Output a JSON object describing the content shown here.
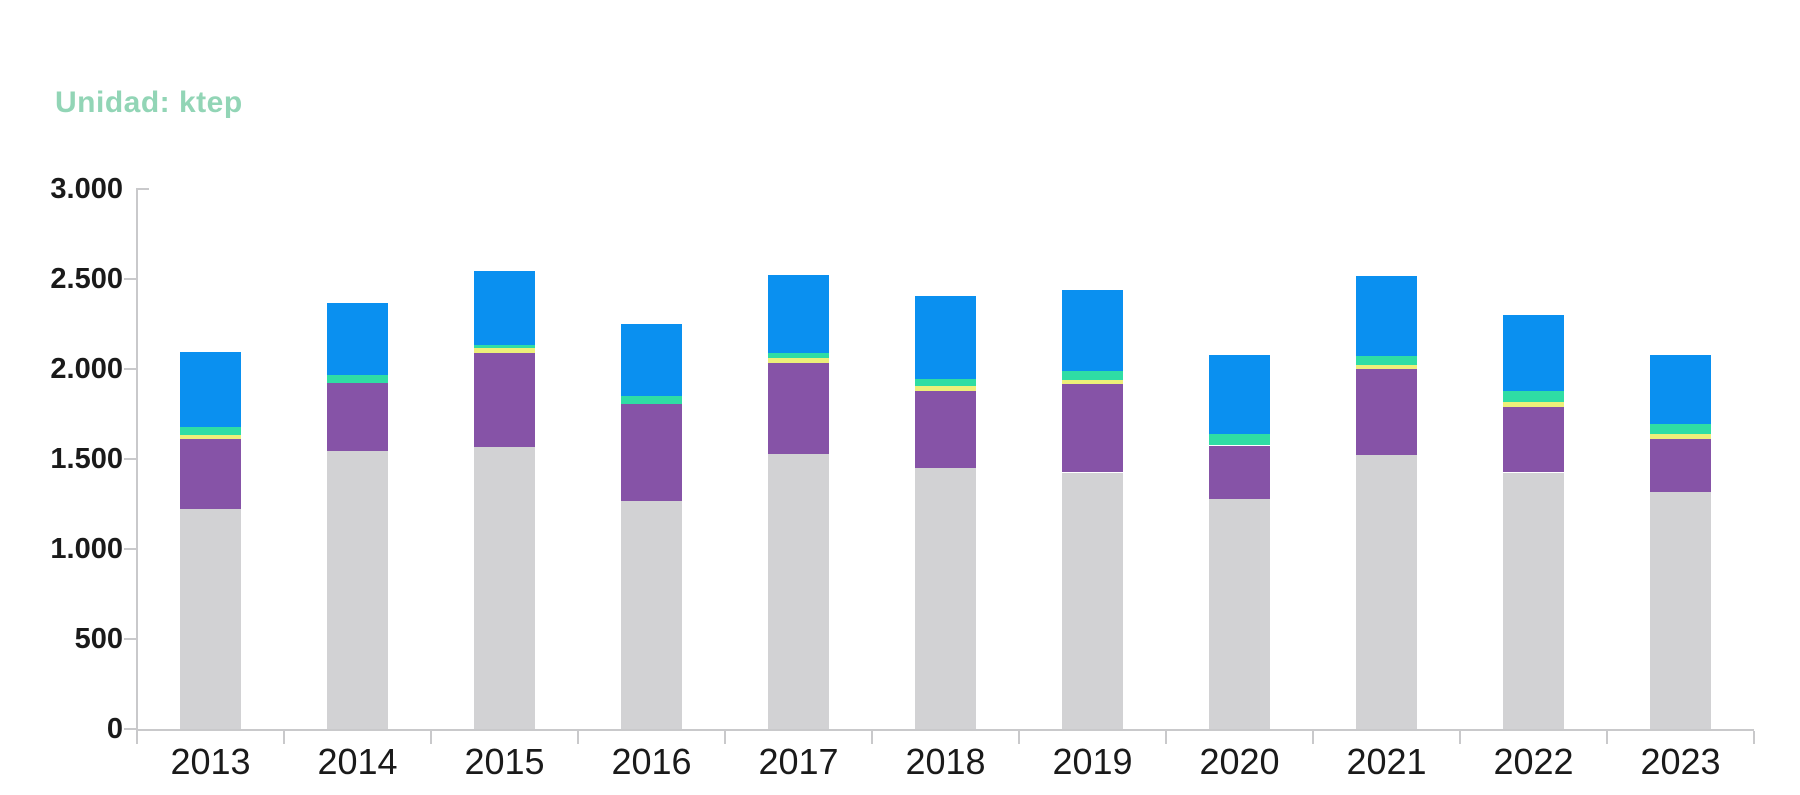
{
  "title": "Unidad: ktep",
  "colors": {
    "title": "#92d5b6",
    "axis": "#c9c9cb",
    "tick_label": "#1a1a1a"
  },
  "chart_data": {
    "type": "bar",
    "stacked": true,
    "title": "Unidad: ktep",
    "unit": "ktep",
    "xlabel": "",
    "ylabel": "",
    "ylim": [
      0,
      3000
    ],
    "grid": false,
    "legend": "none",
    "categories": [
      "2013",
      "2014",
      "2015",
      "2016",
      "2017",
      "2018",
      "2019",
      "2020",
      "2021",
      "2022",
      "2023"
    ],
    "series": [
      {
        "name": "gray",
        "color": "#d2d2d4",
        "values": [
          1220,
          1545,
          1565,
          1265,
          1530,
          1450,
          1425,
          1280,
          1520,
          1425,
          1315
        ]
      },
      {
        "name": "purple",
        "color": "#8653a7",
        "values": [
          390,
          375,
          525,
          540,
          505,
          430,
          490,
          295,
          480,
          365,
          295
        ]
      },
      {
        "name": "yellow",
        "color": "#edef79",
        "values": [
          25,
          0,
          25,
          0,
          25,
          25,
          25,
          0,
          20,
          25,
          30
        ]
      },
      {
        "name": "green",
        "color": "#2fdda4",
        "values": [
          45,
          45,
          20,
          45,
          30,
          40,
          50,
          65,
          50,
          65,
          55
        ]
      },
      {
        "name": "blue",
        "color": "#0a90f0",
        "values": [
          415,
          400,
          410,
          400,
          430,
          460,
          450,
          440,
          445,
          420,
          385
        ]
      }
    ],
    "totals": [
      2095,
      2365,
      2545,
      2250,
      2520,
      2405,
      2440,
      2080,
      2515,
      2300,
      2080
    ],
    "yticks": [
      {
        "value": 0,
        "label": "0"
      },
      {
        "value": 500,
        "label": "500"
      },
      {
        "value": 1000,
        "label": "1.000"
      },
      {
        "value": 1500,
        "label": "1.500"
      },
      {
        "value": 2000,
        "label": "2.000"
      },
      {
        "value": 2500,
        "label": "2.500"
      },
      {
        "value": 3000,
        "label": "3.000"
      }
    ]
  }
}
